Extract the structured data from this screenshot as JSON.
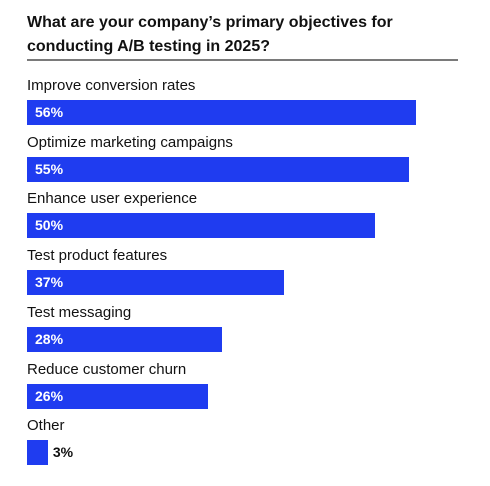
{
  "chart_data": {
    "type": "bar",
    "orientation": "horizontal",
    "title": "What are your company’s primary objectives for conducting A/B testing in 2025?",
    "categories": [
      "Improve conversion rates",
      "Optimize marketing campaigns",
      "Enhance user experience",
      "Test product features",
      "Test messaging",
      "Reduce customer churn",
      "Other"
    ],
    "values": [
      56,
      55,
      50,
      37,
      28,
      26,
      3
    ],
    "value_labels": [
      "56%",
      "55%",
      "50%",
      "37%",
      "28%",
      "26%",
      "3%"
    ],
    "unit": "%",
    "xlim": [
      0,
      100
    ],
    "grid": false,
    "legend": "none",
    "bar_color": "#1f3cf0"
  }
}
